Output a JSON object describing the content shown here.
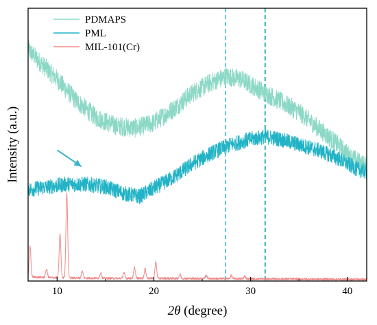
{
  "chart_data": {
    "type": "line",
    "xlabel_italic": "2θ",
    "xlabel_rest": " (degree)",
    "ylabel": "Intensity (a.u.)",
    "xlim": [
      7,
      42
    ],
    "x_ticks": [
      "10",
      "20",
      "30",
      "40"
    ],
    "x_tick_values": [
      10,
      20,
      30,
      40
    ],
    "y_ticks_shown": false,
    "grid": false,
    "legend_position": "top-left",
    "reference_lines": [
      {
        "x": 27.4,
        "style": "dashed",
        "color": "#4ec8d4"
      },
      {
        "x": 31.5,
        "style": "dashed",
        "color": "#1aa7b5"
      }
    ],
    "annotation": {
      "type": "arrow",
      "from": [
        10.0,
        0.48
      ],
      "to": [
        12.5,
        0.42
      ],
      "color": "#3ab3cc"
    },
    "series": [
      {
        "name": "PDMAPS",
        "color": "#8cd8c6",
        "noise": 0.035,
        "points": [
          [
            7,
            0.85
          ],
          [
            8,
            0.81
          ],
          [
            10,
            0.74
          ],
          [
            12,
            0.66
          ],
          [
            14,
            0.6
          ],
          [
            16,
            0.57
          ],
          [
            18,
            0.56
          ],
          [
            20,
            0.58
          ],
          [
            22,
            0.63
          ],
          [
            24,
            0.69
          ],
          [
            26,
            0.73
          ],
          [
            27.5,
            0.75
          ],
          [
            29,
            0.74
          ],
          [
            31,
            0.7
          ],
          [
            33,
            0.66
          ],
          [
            35,
            0.62
          ],
          [
            37,
            0.56
          ],
          [
            39,
            0.5
          ],
          [
            40.5,
            0.45
          ],
          [
            42,
            0.42
          ]
        ]
      },
      {
        "name": "PML",
        "color": "#22b3c6",
        "noise": 0.028,
        "points": [
          [
            7,
            0.335
          ],
          [
            9,
            0.345
          ],
          [
            11,
            0.355
          ],
          [
            13,
            0.355
          ],
          [
            15,
            0.345
          ],
          [
            17,
            0.32
          ],
          [
            18.5,
            0.31
          ],
          [
            20,
            0.34
          ],
          [
            22,
            0.38
          ],
          [
            24,
            0.43
          ],
          [
            26,
            0.47
          ],
          [
            28,
            0.5
          ],
          [
            30,
            0.52
          ],
          [
            31.5,
            0.53
          ],
          [
            33,
            0.52
          ],
          [
            35,
            0.5
          ],
          [
            37,
            0.48
          ],
          [
            39,
            0.45
          ],
          [
            41,
            0.41
          ],
          [
            42,
            0.4
          ]
        ]
      },
      {
        "name": "MIL-101(Cr)",
        "color": "#f08a8a",
        "noise": 0.004,
        "baseline": [
          [
            7,
            0.015
          ],
          [
            10,
            0.012
          ],
          [
            15,
            0.01
          ],
          [
            20,
            0.01
          ],
          [
            30,
            0.008
          ],
          [
            42,
            0.006
          ]
        ],
        "peaks": [
          [
            7.2,
            0.11
          ],
          [
            8.9,
            0.03
          ],
          [
            10.3,
            0.16
          ],
          [
            11.0,
            0.31
          ],
          [
            12.6,
            0.025
          ],
          [
            14.5,
            0.02
          ],
          [
            16.9,
            0.02
          ],
          [
            18.0,
            0.04
          ],
          [
            19.1,
            0.035
          ],
          [
            20.2,
            0.06
          ],
          [
            22.7,
            0.015
          ],
          [
            25.4,
            0.012
          ],
          [
            28.0,
            0.012
          ],
          [
            29.4,
            0.01
          ]
        ]
      }
    ]
  }
}
